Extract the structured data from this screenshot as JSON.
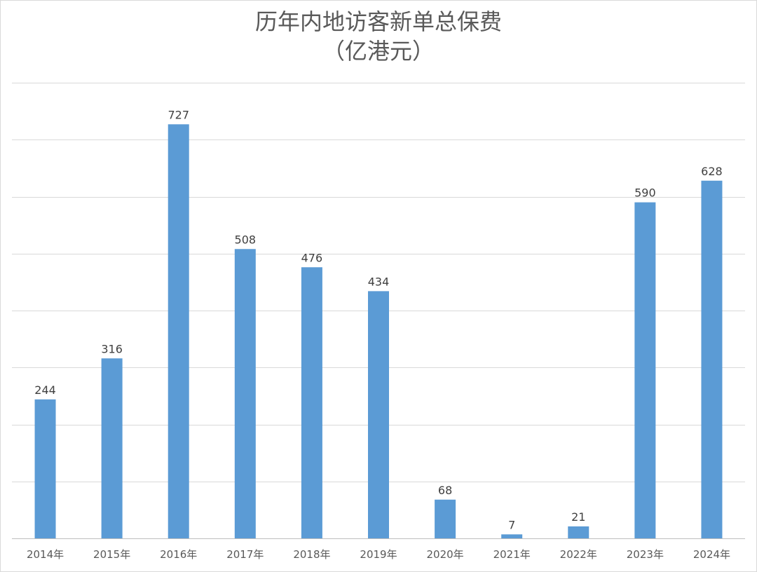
{
  "chart_data": {
    "type": "bar",
    "title": "历年内地访客新单总保费",
    "subtitle": "（亿港元）",
    "categories": [
      "2014年",
      "2015年",
      "2016年",
      "2017年",
      "2018年",
      "2019年",
      "2020年",
      "2021年",
      "2022年",
      "2023年",
      "2024年"
    ],
    "values": [
      244,
      316,
      727,
      508,
      476,
      434,
      68,
      7,
      21,
      590,
      628
    ],
    "xlabel": "",
    "ylabel": "",
    "ylim": [
      0,
      800
    ],
    "grid": true,
    "legend": "none",
    "colors": {
      "bar": "#5b9bd5",
      "grid": "#d9d9d9",
      "text": "#595959"
    }
  }
}
